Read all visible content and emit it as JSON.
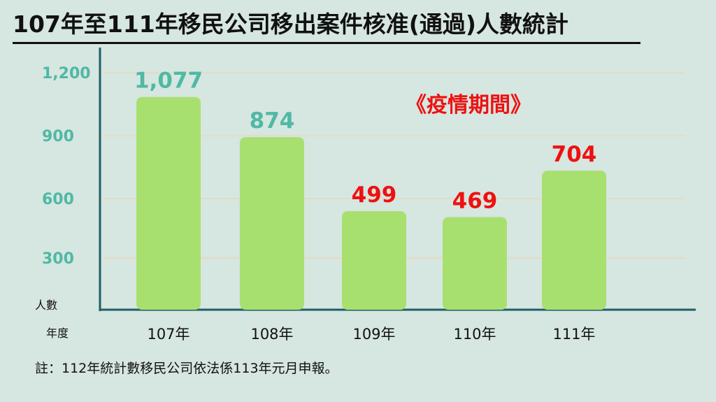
{
  "title": "107年至111年移民公司移出案件核准(通過)人數統計",
  "note": "註：112年統計數移民公司依法係113年元月申報。",
  "annotation": "《疫情期間》",
  "colors": {
    "bar": "#a8e070",
    "axis": "#1f5f66",
    "tick_label": "#4fb9a4",
    "value_normal": "#4fb9a4",
    "value_highlight": "#ee1111",
    "annotation": "#ee1111",
    "grid": "#e3dcc4"
  },
  "chart_data": {
    "type": "bar",
    "title": "107年至111年移民公司移出案件核准(通過)人數統計",
    "ylabel": "人數",
    "xlabel": "年度",
    "categories": [
      "107年",
      "108年",
      "109年",
      "110年",
      "111年"
    ],
    "values": [
      1077,
      874,
      499,
      469,
      704
    ],
    "value_labels": [
      "1,077",
      "874",
      "499",
      "469",
      "704"
    ],
    "highlighted": [
      false,
      false,
      true,
      true,
      true
    ],
    "yticks": [
      300,
      600,
      900,
      1200
    ],
    "ytick_labels": [
      "300",
      "600",
      "900",
      "1,200"
    ],
    "ylim": [
      0,
      1200
    ],
    "grid": true,
    "legend": "none"
  }
}
